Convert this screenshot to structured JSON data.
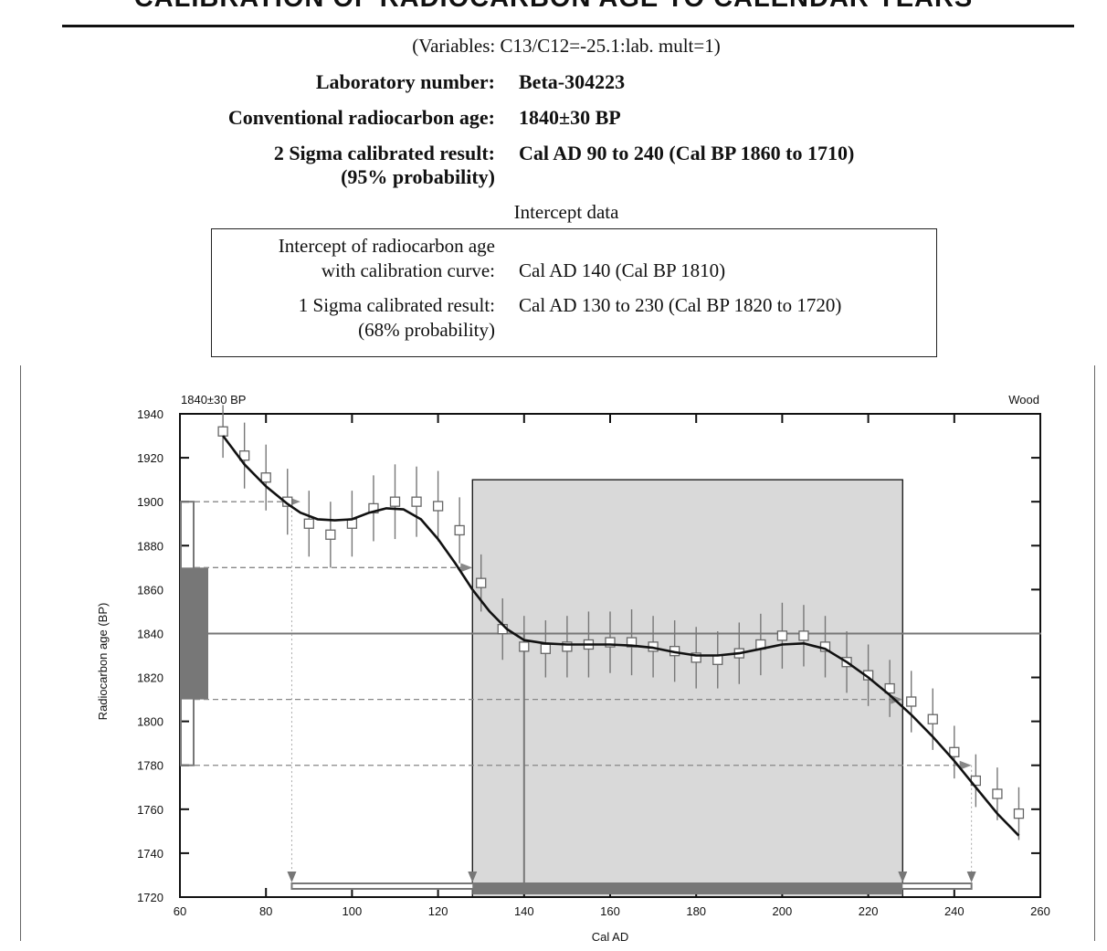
{
  "header": {
    "title": "CALIBRATION OF RADIOCARBON AGE TO CALENDAR YEARS",
    "variables": "(Variables: C13/C12=-25.1:lab. mult=1)"
  },
  "summary": {
    "lab_number_label": "Laboratory number:",
    "lab_number": "Beta-304223",
    "conv_age_label": "Conventional radiocarbon age:",
    "conv_age": "1840±30 BP",
    "sigma2_label": "2 Sigma calibrated result:",
    "sigma2_prob": "(95% probability)",
    "sigma2_value": "Cal AD 90 to 240 (Cal BP 1860 to 1710)"
  },
  "intercept": {
    "heading": "Intercept data",
    "intercept_label_1": "Intercept of radiocarbon age",
    "intercept_label_2": "with calibration curve:",
    "intercept_value": "Cal AD 140 (Cal BP 1810)",
    "sigma1_label": "1 Sigma calibrated result:",
    "sigma1_prob": "(68% probability)",
    "sigma1_value": "Cal AD 130 to 230 (Cal BP 1820 to 1720)"
  },
  "chart_data": {
    "type": "line",
    "top_left_label": "1840±30 BP",
    "top_right_label": "Wood",
    "xlabel": "Cal AD",
    "ylabel": "Radiocarbon age (BP)",
    "xlim": [
      60,
      260
    ],
    "ylim": [
      1720,
      1940
    ],
    "x_ticks": [
      60,
      80,
      100,
      120,
      140,
      160,
      180,
      200,
      220,
      240,
      260
    ],
    "y_ticks": [
      1720,
      1740,
      1760,
      1780,
      1800,
      1820,
      1840,
      1860,
      1880,
      1900,
      1920,
      1940
    ],
    "measured_age": 1840,
    "sigma1_age_range": [
      1810,
      1870
    ],
    "sigma2_age_range": [
      1780,
      1900
    ],
    "intercept_x": 140,
    "sigma1_shaded_range": [
      128,
      228
    ],
    "sigma1_shaded_top": 1910,
    "sigma2_range": [
      86,
      244
    ],
    "calibration_curve": {
      "x": [
        70,
        75,
        80,
        85,
        88,
        92,
        96,
        100,
        104,
        108,
        112,
        116,
        120,
        124,
        128,
        132,
        136,
        140,
        145,
        150,
        155,
        160,
        165,
        170,
        175,
        180,
        185,
        190,
        195,
        200,
        205,
        210,
        215,
        220,
        225,
        230,
        235,
        240,
        245,
        250,
        255
      ],
      "y": [
        1930,
        1917,
        1907,
        1899,
        1895,
        1892,
        1891.5,
        1892,
        1895,
        1897,
        1896.5,
        1892,
        1883,
        1872,
        1860,
        1850,
        1842,
        1837,
        1835.5,
        1835,
        1835,
        1835,
        1834.5,
        1833.5,
        1831.5,
        1830,
        1830,
        1831,
        1833,
        1835,
        1835.5,
        1833,
        1827,
        1820,
        1812,
        1803,
        1793,
        1782,
        1770,
        1758,
        1748
      ]
    },
    "data_points": {
      "x": [
        70,
        75,
        80,
        85,
        90,
        95,
        100,
        105,
        110,
        115,
        120,
        125,
        130,
        135,
        140,
        145,
        150,
        155,
        160,
        165,
        170,
        175,
        180,
        185,
        190,
        195,
        200,
        205,
        210,
        215,
        220,
        225,
        230,
        235,
        240,
        245,
        250,
        255
      ],
      "y": [
        1932,
        1921,
        1911,
        1900,
        1890,
        1885,
        1890,
        1897,
        1900,
        1900,
        1898,
        1887,
        1863,
        1842,
        1834,
        1833,
        1834,
        1835,
        1836,
        1836,
        1834,
        1832,
        1829,
        1828,
        1831,
        1835,
        1839,
        1839,
        1834,
        1827,
        1821,
        1815,
        1809,
        1801,
        1786,
        1773,
        1767,
        1758
      ],
      "err": [
        12,
        15,
        15,
        15,
        15,
        15,
        15,
        15,
        17,
        16,
        16,
        15,
        13,
        14,
        14,
        13,
        14,
        15,
        14,
        15,
        14,
        14,
        14,
        13,
        14,
        14,
        15,
        14,
        14,
        14,
        14,
        13,
        14,
        14,
        12,
        12,
        12,
        12
      ]
    }
  },
  "colors": {
    "curve": "#111111",
    "shaded": "#d9d9d9",
    "gray_line": "#777777",
    "gray_bar": "#777777"
  }
}
